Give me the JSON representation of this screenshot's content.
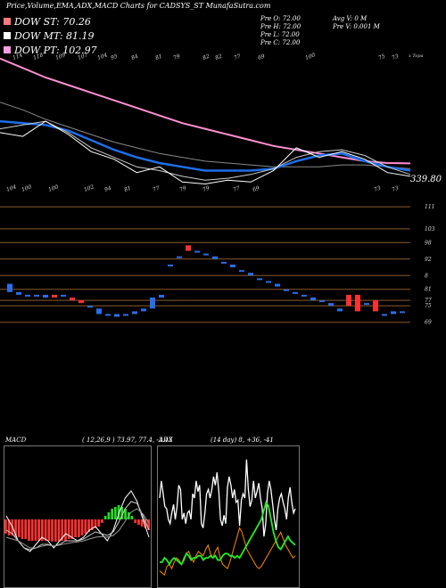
{
  "header": {
    "title": "Price,Volume,EMA,ADX,MACD Charts for CADSYS_ST MunafaSutra.com"
  },
  "legend": [
    {
      "label": "DOW ST: 70.26",
      "color": "#ff7a7a"
    },
    {
      "label": "DOW MT: 81.19",
      "color": "#ffffff"
    },
    {
      "label": "DOW PT: 102.97",
      "color": "#ff9de0"
    }
  ],
  "info": {
    "pre_o": "Pre   O: 72.00",
    "pre_h": "Pre   H: 72.00",
    "pre_l": "Pre   L: 72.00",
    "pre_c": "Pre   C: 72.00",
    "avg_v": "Avg V: 0   M",
    "pre_v": "Pre   V: 0.001 M"
  },
  "main_chart": {
    "top_labels": [
      "114",
      "118",
      "109",
      "107",
      "104",
      "95",
      "84",
      "81",
      "79",
      "82",
      "82",
      "77",
      "69",
      "100",
      "75",
      "73"
    ],
    "top_right_label": "x Topa",
    "bottom_labels": [
      "104",
      "100",
      "100",
      "102",
      "94",
      "81",
      "77",
      "79",
      "79",
      "77",
      "69",
      "73",
      "73"
    ],
    "current_value": "339.80",
    "ema_series": [
      {
        "name": "",
        "color": "#ff8fd0",
        "width": 2,
        "values": [
          395,
          390,
          385,
          381,
          377,
          373,
          369,
          365,
          361,
          358,
          355,
          352,
          349,
          347,
          345,
          343,
          341,
          340,
          339.8
        ]
      },
      {
        "name": "",
        "color": "#888888",
        "width": 1,
        "values": [
          372,
          368,
          363,
          359,
          355,
          351,
          348,
          345,
          343,
          341,
          340,
          339,
          338,
          338,
          338,
          339,
          339,
          338,
          337
        ]
      },
      {
        "name": "",
        "color": "#1e6ee8",
        "width": 2.5,
        "values": [
          362,
          361,
          360,
          357,
          352,
          347,
          343,
          340,
          338,
          336,
          336,
          336,
          337,
          341,
          344,
          345,
          341,
          338,
          336
        ]
      },
      {
        "name": "",
        "color": "#cccccc",
        "width": 1,
        "values": [
          358,
          360,
          362,
          356,
          348,
          343,
          338,
          336,
          333,
          331,
          332,
          334,
          337,
          343,
          346,
          347,
          344,
          338,
          334
        ]
      },
      {
        "name": "",
        "color": "#ffffff",
        "width": 1,
        "values": [
          356,
          354,
          362,
          355,
          346,
          342,
          335,
          338,
          330,
          329,
          331,
          330,
          336,
          348,
          343,
          346,
          342,
          335,
          333
        ]
      }
    ]
  },
  "candle_chart": {
    "y_labels": [
      "111",
      "103",
      "98",
      "92",
      "8",
      "81",
      "77",
      "75",
      "69"
    ],
    "ylim": [
      66,
      113
    ],
    "candles": [
      {
        "o": 83,
        "c": 80,
        "color": "#2a6de8"
      },
      {
        "o": 80,
        "c": 79,
        "color": "#2a6de8"
      },
      {
        "o": 79,
        "c": 79,
        "color": "#2a6de8"
      },
      {
        "o": 79,
        "c": 79,
        "color": "#2a6de8"
      },
      {
        "o": 79,
        "c": 78,
        "color": "#2a6de8"
      },
      {
        "o": 78,
        "c": 79,
        "color": "#ff3030"
      },
      {
        "o": 79,
        "c": 79,
        "color": "#2a6de8"
      },
      {
        "o": 77,
        "c": 78,
        "color": "#ff3030"
      },
      {
        "o": 77,
        "c": 76,
        "color": "#ff3030"
      },
      {
        "o": 75,
        "c": 75,
        "color": "#2a6de8"
      },
      {
        "o": 74,
        "c": 72,
        "color": "#2a6de8"
      },
      {
        "o": 72,
        "c": 72,
        "color": "#2a6de8"
      },
      {
        "o": 72,
        "c": 71,
        "color": "#2a6de8"
      },
      {
        "o": 72,
        "c": 72,
        "color": "#2a6de8"
      },
      {
        "o": 72,
        "c": 73,
        "color": "#2a6de8"
      },
      {
        "o": 73,
        "c": 74,
        "color": "#2a6de8"
      },
      {
        "o": 74,
        "c": 78,
        "color": "#2a6de8"
      },
      {
        "o": 78,
        "c": 79,
        "color": "#2a6de8"
      },
      {
        "o": 90,
        "c": 90,
        "color": "#2a6de8"
      },
      {
        "o": 93,
        "c": 93,
        "color": "#2a6de8"
      },
      {
        "o": 97,
        "c": 95,
        "color": "#ff3030"
      },
      {
        "o": 95,
        "c": 95,
        "color": "#2a6de8"
      },
      {
        "o": 94,
        "c": 94,
        "color": "#2a6de8"
      },
      {
        "o": 93,
        "c": 92,
        "color": "#2a6de8"
      },
      {
        "o": 91,
        "c": 91,
        "color": "#2a6de8"
      },
      {
        "o": 90,
        "c": 89,
        "color": "#2a6de8"
      },
      {
        "o": 88,
        "c": 88,
        "color": "#2a6de8"
      },
      {
        "o": 87,
        "c": 86,
        "color": "#2a6de8"
      },
      {
        "o": 85,
        "c": 85,
        "color": "#2a6de8"
      },
      {
        "o": 84,
        "c": 84,
        "color": "#2a6de8"
      },
      {
        "o": 83,
        "c": 82,
        "color": "#2a6de8"
      },
      {
        "o": 81,
        "c": 81,
        "color": "#2a6de8"
      },
      {
        "o": 80,
        "c": 80,
        "color": "#2a6de8"
      },
      {
        "o": 79,
        "c": 79,
        "color": "#2a6de8"
      },
      {
        "o": 78,
        "c": 77,
        "color": "#2a6de8"
      },
      {
        "o": 77,
        "c": 77,
        "color": "#2a6de8"
      },
      {
        "o": 76,
        "c": 75,
        "color": "#2a6de8"
      },
      {
        "o": 74,
        "c": 73,
        "color": "#2a6de8"
      },
      {
        "o": 75,
        "c": 79,
        "color": "#ff3030"
      },
      {
        "o": 79,
        "c": 73,
        "color": "#ff3030"
      },
      {
        "o": 76,
        "c": 76,
        "color": "#2a6de8"
      },
      {
        "o": 77,
        "c": 73,
        "color": "#ff3030"
      },
      {
        "o": 72,
        "c": 72,
        "color": "#2a6de8"
      },
      {
        "o": 73,
        "c": 72,
        "color": "#2a6de8"
      },
      {
        "o": 73,
        "c": 73,
        "color": "#2a6de8"
      }
    ]
  },
  "macd_panel": {
    "label": "MACD",
    "values_text": "( 12,26,9 ) 73.97, 77.4, -3.43",
    "histogram": [
      -0.4,
      -0.45,
      -0.45,
      -0.5,
      -0.5,
      -0.55,
      -0.55,
      -0.6,
      -0.6,
      -0.6,
      -0.6,
      -0.6,
      -0.6,
      -0.6,
      -0.62,
      -0.62,
      -0.62,
      -0.6,
      -0.6,
      -0.55,
      -0.55,
      -0.5,
      -0.5,
      -0.45,
      -0.4,
      -0.35,
      -0.3,
      -0.25,
      -0.2,
      -0.1,
      0.1,
      0.2,
      0.3,
      0.35,
      0.4,
      0.35,
      0.3,
      0.2,
      0.1,
      -0.1,
      -0.15,
      -0.2,
      -0.25,
      -0.3
    ],
    "lines": [
      {
        "name": "",
        "color": "#ffffff",
        "values": [
          0.1,
          -0.2,
          -0.6,
          -0.8,
          -0.9,
          -0.7,
          -0.5,
          -0.6,
          -0.8,
          -0.6,
          -0.4,
          -0.5,
          -0.6,
          -0.5,
          -0.3,
          -0.2,
          -0.4,
          -0.6,
          -0.3,
          0.2,
          0.6,
          0.8,
          0.5,
          0.0,
          -0.5
        ]
      },
      {
        "name": "",
        "color": "#cccccc",
        "values": [
          -0.3,
          -0.4,
          -0.6,
          -0.8,
          -0.85,
          -0.8,
          -0.7,
          -0.7,
          -0.75,
          -0.7,
          -0.6,
          -0.6,
          -0.6,
          -0.55,
          -0.45,
          -0.35,
          -0.4,
          -0.45,
          -0.35,
          -0.05,
          0.3,
          0.5,
          0.45,
          0.1,
          -0.3
        ]
      },
      {
        "name": "",
        "color": "#999999",
        "values": [
          -0.5,
          -0.55,
          -0.6,
          -0.7,
          -0.8,
          -0.8,
          -0.75,
          -0.72,
          -0.75,
          -0.72,
          -0.68,
          -0.65,
          -0.63,
          -0.6,
          -0.55,
          -0.5,
          -0.48,
          -0.5,
          -0.45,
          -0.3,
          -0.05,
          0.2,
          0.3,
          0.15,
          -0.1
        ]
      }
    ]
  },
  "adx_panel": {
    "label": "ADX",
    "values_text": "(14  day) 8, +36, -41",
    "adx": [
      40,
      48,
      42,
      36,
      35,
      30,
      28,
      33,
      37,
      30,
      36,
      46,
      44,
      30,
      33,
      28,
      33,
      34,
      30,
      42,
      40,
      48,
      43,
      46,
      28,
      26,
      33,
      42,
      44,
      40,
      44,
      50,
      46,
      52,
      43,
      30,
      27,
      32,
      28,
      45,
      50,
      46,
      40,
      44,
      38,
      39,
      27,
      39,
      42,
      40,
      58,
      44,
      36,
      39,
      48,
      40,
      43,
      47,
      40,
      35,
      22,
      28,
      42,
      48,
      44,
      37,
      30,
      25,
      35,
      40,
      42,
      38,
      35,
      30,
      40,
      45,
      38,
      33,
      35
    ],
    "plus_di": [
      10,
      10,
      12,
      11,
      9,
      11,
      12,
      11,
      10,
      9,
      11,
      14,
      13,
      11,
      12,
      12,
      13,
      13,
      11,
      12,
      12,
      13,
      12,
      13,
      11,
      11,
      13,
      14,
      14,
      13,
      13,
      12,
      13,
      12,
      14,
      16,
      18,
      20,
      22,
      24,
      26,
      28,
      30,
      34,
      38,
      36,
      30,
      24,
      20,
      17,
      16,
      18,
      20,
      22,
      20,
      19,
      18
    ],
    "minus_di": [
      6,
      5,
      4,
      8,
      9,
      7,
      10,
      12,
      11,
      9,
      12,
      14,
      15,
      12,
      10,
      13,
      15,
      14,
      13,
      16,
      18,
      14,
      12,
      15,
      17,
      12,
      9,
      8,
      7,
      10,
      14,
      18,
      22,
      26,
      24,
      20,
      16,
      14,
      12,
      10,
      8,
      7,
      8,
      10,
      12,
      14,
      16,
      18,
      20,
      22,
      24,
      21,
      18,
      16,
      14,
      12,
      13
    ]
  }
}
